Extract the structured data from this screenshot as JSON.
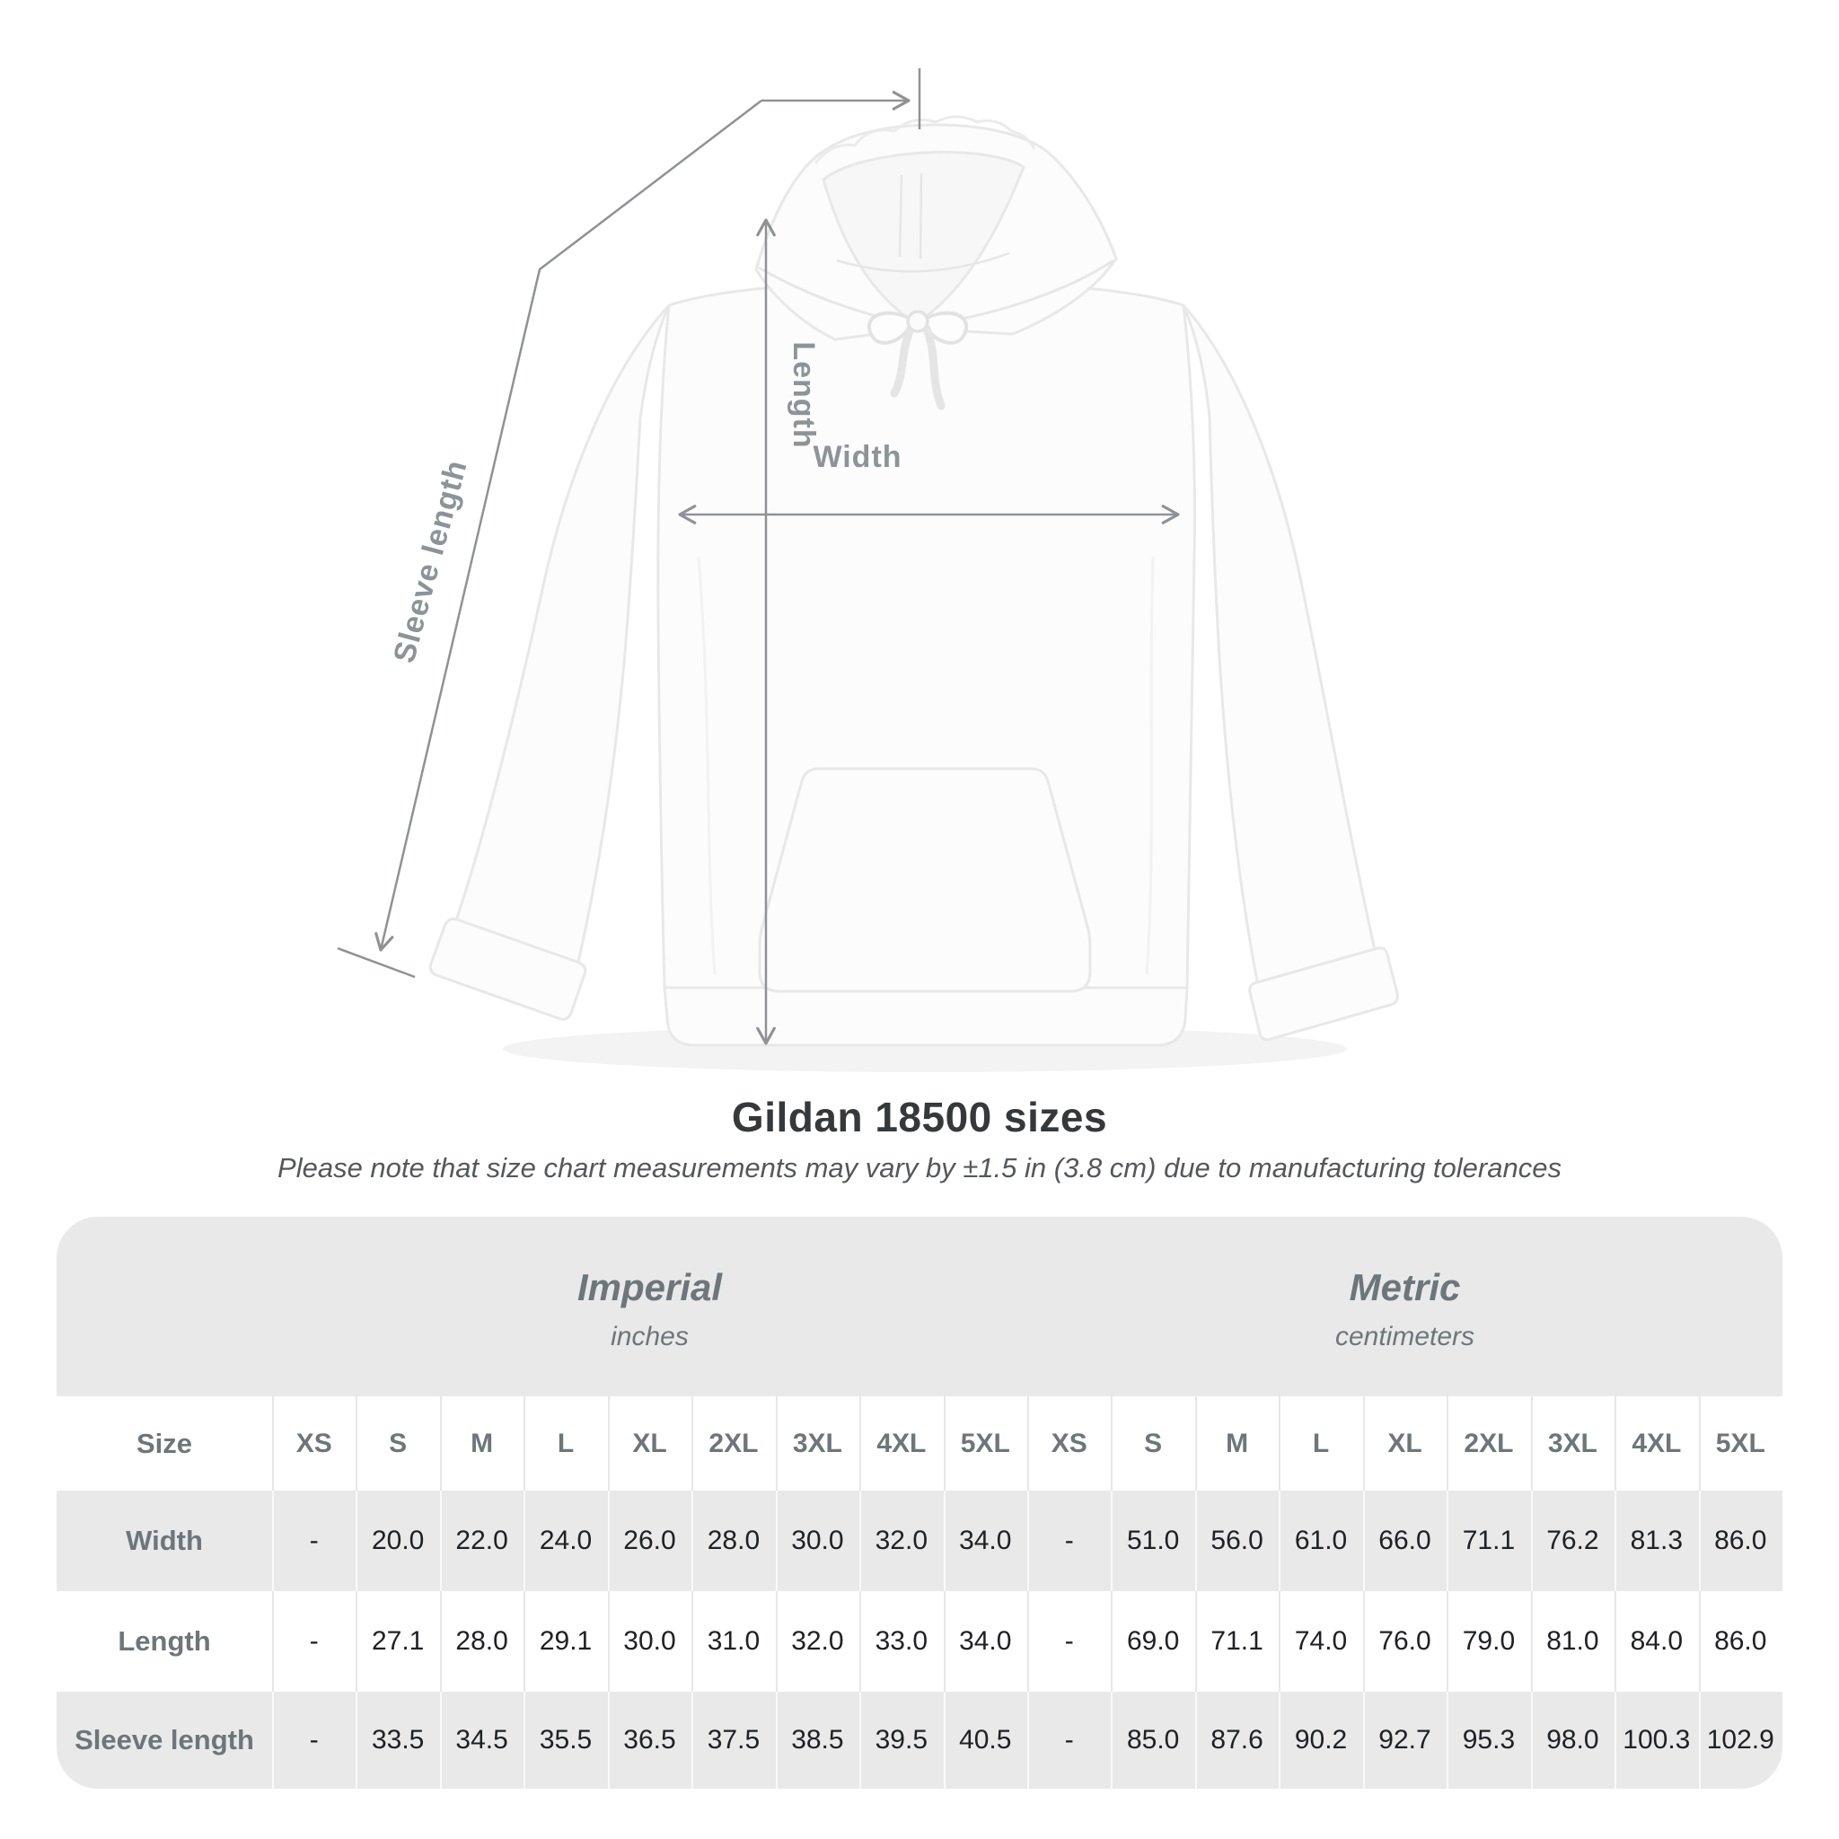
{
  "diagram": {
    "labels": {
      "length": "Length",
      "width": "Width",
      "sleeve": "Sleeve length"
    }
  },
  "title": "Gildan 18500 sizes",
  "subtitle": "Please note that size chart measurements may vary by ±1.5 in (3.8 cm) due to manufacturing tolerances",
  "table": {
    "unit_groups": [
      {
        "name": "Imperial",
        "unit": "inches"
      },
      {
        "name": "Metric",
        "unit": "centimeters"
      }
    ],
    "size_label": "Size",
    "sizes": [
      "XS",
      "S",
      "M",
      "L",
      "XL",
      "2XL",
      "3XL",
      "4XL",
      "5XL"
    ],
    "rows": [
      {
        "label": "Width",
        "imperial": [
          "-",
          "20.0",
          "22.0",
          "24.0",
          "26.0",
          "28.0",
          "30.0",
          "32.0",
          "34.0"
        ],
        "metric": [
          "-",
          "51.0",
          "56.0",
          "61.0",
          "66.0",
          "71.1",
          "76.2",
          "81.3",
          "86.0"
        ]
      },
      {
        "label": "Length",
        "imperial": [
          "-",
          "27.1",
          "28.0",
          "29.1",
          "30.0",
          "31.0",
          "32.0",
          "33.0",
          "34.0"
        ],
        "metric": [
          "-",
          "69.0",
          "71.1",
          "74.0",
          "76.0",
          "79.0",
          "81.0",
          "84.0",
          "86.0"
        ]
      },
      {
        "label": "Sleeve length",
        "imperial": [
          "-",
          "33.5",
          "34.5",
          "35.5",
          "36.5",
          "37.5",
          "38.5",
          "39.5",
          "40.5"
        ],
        "metric": [
          "-",
          "85.0",
          "87.6",
          "90.2",
          "92.7",
          "95.3",
          "98.0",
          "100.3",
          "102.9"
        ]
      }
    ]
  },
  "colors": {
    "measure_line": "#8f9295",
    "measure_label": "#8b9499",
    "title_text": "#36393b",
    "subtitle_text": "#54585a",
    "table_background": "#e9e9e9",
    "table_header_text": "#6d767a",
    "table_value_text": "#202124",
    "garment_outline": "#e8e8e8"
  }
}
